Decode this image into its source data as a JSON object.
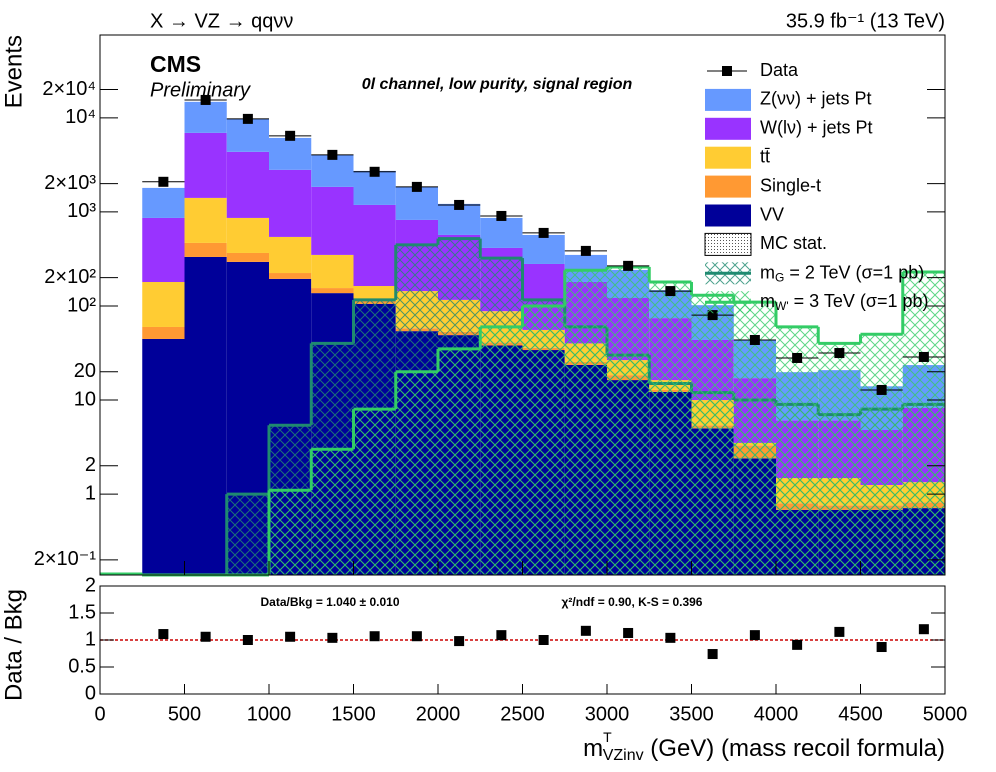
{
  "chart_data": [
    {
      "type": "stacked_histogram",
      "title": "X → VZ → qqνν",
      "lumi": "35.9 fb⁻¹ (13 TeV)",
      "experiment": "CMS",
      "status": "Preliminary",
      "annotation": "0l channel, low purity, signal region",
      "ylabel": "Events",
      "log_y": true,
      "bins": [
        250,
        500,
        750,
        1000,
        1250,
        1500,
        1750,
        2000,
        2250,
        2500,
        2750,
        3000,
        3250,
        3500,
        3750,
        4000,
        4250,
        4500,
        4750,
        5000
      ],
      "xlim": [
        0,
        5000
      ],
      "xticks": [
        0,
        500,
        1000,
        1500,
        2000,
        2500,
        3000,
        3500,
        4000,
        4500,
        5000
      ],
      "ylim": [
        0.138,
        76000
      ],
      "yticks": [
        {
          "value": 0.2,
          "label": "2×10⁻¹"
        },
        1,
        2,
        10,
        20,
        {
          "value": 100,
          "label": "10²"
        },
        {
          "value": 200,
          "label": "2×10²"
        },
        {
          "value": 1000,
          "label": "10³"
        },
        {
          "value": 2000,
          "label": "2×10³"
        },
        {
          "value": 10000,
          "label": "10⁴"
        },
        {
          "value": 20000,
          "label": "2×10⁴"
        }
      ],
      "data": {
        "name": "Data",
        "color": "#000000",
        "values": [
          2090,
          15500,
          9750,
          6440,
          4040,
          2670,
          1845,
          1186,
          906,
          598,
          385,
          267,
          144,
          80,
          43.5,
          28,
          31.6,
          12.8,
          28.7
        ]
      },
      "series": [
        {
          "name": "Z(νν) + jets Pt",
          "color": "#6699ff",
          "values": [
            937,
            7880,
            5400,
            3320,
            2195,
            1544,
            1023,
            648,
            449,
            289,
            169,
            120,
            73,
            58.5,
            26.4,
            13.7,
            14.7,
            9.2,
            15.3
          ]
        },
        {
          "name": "W(lν) + jets Pt",
          "color": "#9933ff",
          "values": [
            683,
            5511,
            3487,
            2258,
            1496,
            1023,
            678,
            453,
            326,
            224,
            140,
            95,
            58,
            33.5,
            13.6,
            4.6,
            4.6,
            3.55,
            6.9
          ]
        },
        {
          "name": "tt̄",
          "color": "#ffcc33",
          "values": [
            120,
            941,
            497,
            318,
            194,
            47,
            86,
            63,
            47,
            19.6,
            14.6,
            8.2,
            3.5,
            4.6,
            0.2,
            0.68,
            0.72,
            0.49,
            0.52
          ]
        },
        {
          "name": "Single-t",
          "color": "#ff9933",
          "values": [
            15.2,
            136,
            72,
            30,
            18,
            11,
            4,
            4,
            3,
            2,
            1.8,
            2.1,
            0.6,
            0.4,
            0.9,
            0.12,
            0.08,
            0.08,
            0.11
          ]
        },
        {
          "name": "VV",
          "color": "#000099",
          "values": [
            44.6,
            332,
            294,
            194,
            137,
            105,
            54,
            49,
            38,
            34,
            23.6,
            16.3,
            12.2,
            5.0,
            2.4,
            0.68,
            0.68,
            0.68,
            0.71
          ]
        }
      ],
      "mc_stat_label": "MC stat.",
      "signals": [
        {
          "name": "mG = 2 TeV (σ=1 pb)",
          "color": "#1f8a70",
          "values": [
            0,
            0,
            1,
            5.4,
            40,
            116,
            446,
            520,
            323,
            116,
            60,
            30,
            15,
            12,
            10,
            9,
            7,
            8,
            9
          ]
        },
        {
          "name": "mW' = 3 TeV (σ=1 pb)",
          "color": "#33cc66",
          "values": [
            0,
            0,
            0,
            1.1,
            3,
            8,
            20,
            35,
            60,
            100,
            240,
            260,
            180,
            130,
            110,
            60,
            40,
            50,
            230
          ]
        }
      ]
    },
    {
      "type": "scatter",
      "ylabel": "Data / Bkg",
      "xlabel": {
        "symbol": "m",
        "sup": "T",
        "sub": "VZinv",
        "rest": " (GeV) (mass recoil formula)"
      },
      "annotations": [
        "Data/Bkg = 1.040 ± 0.010",
        "χ²/ndf = 0.90,   K-S = 0.396"
      ],
      "x": [
        375,
        625,
        875,
        1125,
        1375,
        1625,
        1875,
        2125,
        2375,
        2625,
        2875,
        3125,
        3375,
        3625,
        3875,
        4125,
        4375,
        4625,
        4875
      ],
      "values": [
        1.11,
        1.06,
        1.0,
        1.06,
        1.04,
        1.07,
        1.07,
        0.98,
        1.09,
        1.0,
        1.17,
        1.13,
        1.04,
        0.74,
        1.09,
        0.91,
        1.15,
        0.87,
        1.2
      ],
      "color": "#000000",
      "reference_line": 1,
      "reference_color": "#cc0000",
      "xlim": [
        0,
        5000
      ],
      "xticks": [
        0,
        500,
        1000,
        1500,
        2000,
        2500,
        3000,
        3500,
        4000,
        4500,
        5000
      ],
      "ylim": [
        0,
        2
      ],
      "yticks": [
        0,
        0.5,
        1,
        1.5,
        2
      ]
    }
  ]
}
